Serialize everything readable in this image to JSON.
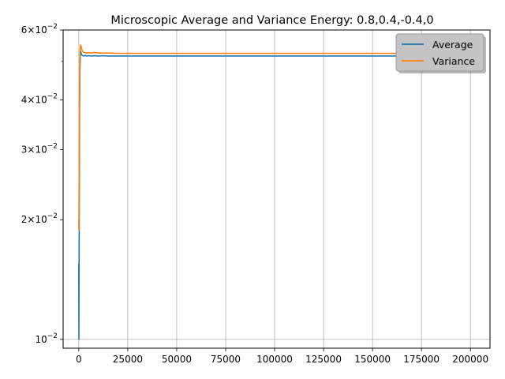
{
  "chart_data": {
    "type": "line",
    "title": "Microscopic Average and Variance Energy: 0.8,0.4,-0.4,0",
    "xlabel": "",
    "ylabel": "",
    "xlim": [
      -8000,
      210000
    ],
    "ylim": [
      0.0095,
      0.06
    ],
    "yscale": "log",
    "grid": "vertical major gridlines, one at y = 10^-2",
    "legend": "top-right",
    "x_ticks": [
      {
        "value": 0,
        "label": "0"
      },
      {
        "value": 25000,
        "label": "25000"
      },
      {
        "value": 50000,
        "label": "50000"
      },
      {
        "value": 75000,
        "label": "75000"
      },
      {
        "value": 100000,
        "label": "100000"
      },
      {
        "value": 125000,
        "label": "125000"
      },
      {
        "value": 150000,
        "label": "150000"
      },
      {
        "value": 175000,
        "label": "175000"
      },
      {
        "value": 200000,
        "label": "200000"
      }
    ],
    "y_ticks": [
      {
        "value": 0.01,
        "base": "10",
        "exp": "−2"
      },
      {
        "value": 0.02,
        "base": "2×10",
        "exp": "−2"
      },
      {
        "value": 0.03,
        "base": "3×10",
        "exp": "−2"
      },
      {
        "value": 0.04,
        "base": "4×10",
        "exp": "−2"
      },
      {
        "value": 0.06,
        "base": "6×10",
        "exp": "−2"
      }
    ],
    "y_minor_ticks": [
      0.05
    ],
    "series": [
      {
        "name": "Average",
        "color": "#1f77b4",
        "x": [
          0,
          60,
          150,
          260,
          400,
          600,
          800,
          1000,
          1300,
          1600,
          2000,
          2600,
          3300,
          4000,
          5000,
          6500,
          8000,
          10000,
          12000,
          15000,
          20000,
          50000,
          100000,
          150000,
          200000
        ],
        "y": [
          0.0155,
          0.01,
          0.015,
          0.023,
          0.037,
          0.048,
          0.052,
          0.053,
          0.0522,
          0.0519,
          0.0517,
          0.0516,
          0.0518,
          0.0516,
          0.0517,
          0.0516,
          0.0517,
          0.0516,
          0.0517,
          0.0516,
          0.0516,
          0.0516,
          0.0516,
          0.0516,
          0.0516
        ]
      },
      {
        "name": "Variance",
        "color": "#ff7f0e",
        "x": [
          0,
          80,
          200,
          350,
          500,
          700,
          900,
          1100,
          1300,
          1600,
          2000,
          2600,
          3300,
          4000,
          5000,
          6500,
          8000,
          9000,
          10000,
          12000,
          15000,
          20000,
          50000,
          100000,
          150000,
          200000
        ],
        "y": [
          0.02,
          0.0188,
          0.026,
          0.04,
          0.05,
          0.054,
          0.055,
          0.0548,
          0.0542,
          0.0535,
          0.053,
          0.0527,
          0.0526,
          0.0525,
          0.0526,
          0.0525,
          0.0527,
          0.0526,
          0.0525,
          0.0525,
          0.0525,
          0.0524,
          0.0524,
          0.0524,
          0.0524,
          0.0524
        ]
      }
    ]
  }
}
